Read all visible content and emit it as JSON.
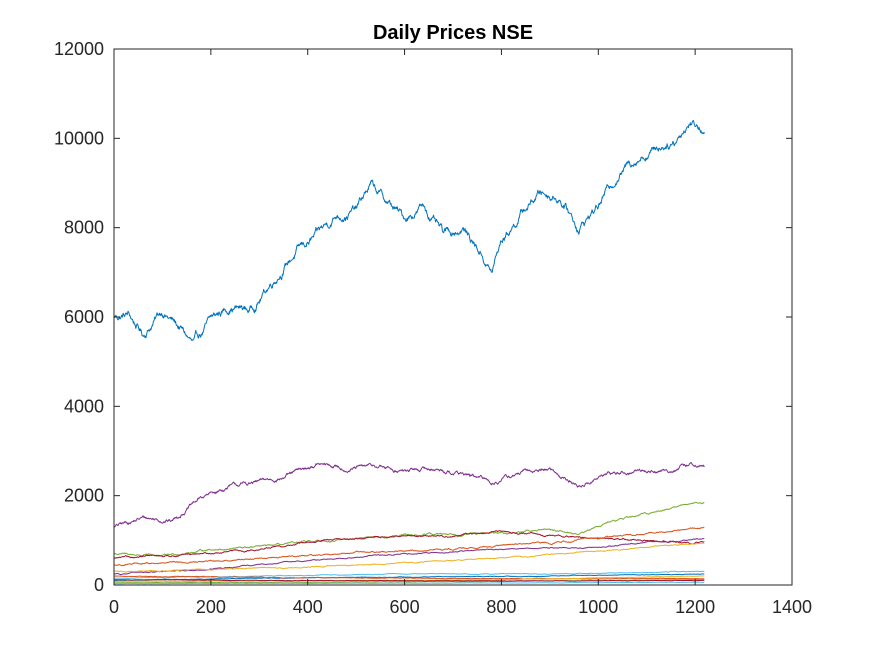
{
  "chart_data": {
    "type": "line",
    "title": "Daily Prices NSE",
    "xlabel": "",
    "ylabel": "",
    "xlim": [
      0,
      1400
    ],
    "ylim": [
      0,
      12000
    ],
    "xticks": [
      0,
      200,
      400,
      600,
      800,
      1000,
      1200,
      1400
    ],
    "yticks": [
      0,
      2000,
      4000,
      6000,
      8000,
      10000,
      12000
    ],
    "grid": false,
    "legend": "none",
    "n_points": 1220,
    "series": [
      {
        "color": "#0072BD",
        "anchors": [
          [
            0,
            6000
          ],
          [
            30,
            6050
          ],
          [
            60,
            5600
          ],
          [
            100,
            6150
          ],
          [
            140,
            5700
          ],
          [
            165,
            5350
          ],
          [
            200,
            5900
          ],
          [
            240,
            6250
          ],
          [
            280,
            6150
          ],
          [
            300,
            6400
          ],
          [
            340,
            7000
          ],
          [
            380,
            7500
          ],
          [
            420,
            7800
          ],
          [
            460,
            8300
          ],
          [
            500,
            8400
          ],
          [
            530,
            8950
          ],
          [
            560,
            8600
          ],
          [
            600,
            8200
          ],
          [
            640,
            8500
          ],
          [
            680,
            7800
          ],
          [
            720,
            8000
          ],
          [
            760,
            7400
          ],
          [
            780,
            7000
          ],
          [
            800,
            7700
          ],
          [
            840,
            8300
          ],
          [
            880,
            8800
          ],
          [
            920,
            8700
          ],
          [
            960,
            8000
          ],
          [
            1000,
            8500
          ],
          [
            1040,
            9200
          ],
          [
            1080,
            9600
          ],
          [
            1120,
            9800
          ],
          [
            1160,
            10000
          ],
          [
            1190,
            10400
          ],
          [
            1220,
            10200
          ]
        ],
        "amp": 120
      },
      {
        "color": "#7E2F8E",
        "anchors": [
          [
            0,
            1300
          ],
          [
            60,
            1500
          ],
          [
            120,
            1450
          ],
          [
            180,
            1950
          ],
          [
            240,
            2200
          ],
          [
            300,
            2300
          ],
          [
            360,
            2450
          ],
          [
            420,
            2700
          ],
          [
            480,
            2600
          ],
          [
            540,
            2650
          ],
          [
            600,
            2550
          ],
          [
            660,
            2600
          ],
          [
            720,
            2500
          ],
          [
            780,
            2300
          ],
          [
            840,
            2500
          ],
          [
            900,
            2600
          ],
          [
            960,
            2200
          ],
          [
            1020,
            2500
          ],
          [
            1080,
            2550
          ],
          [
            1140,
            2550
          ],
          [
            1200,
            2700
          ],
          [
            1220,
            2650
          ]
        ],
        "amp": 55
      },
      {
        "color": "#77AC30",
        "anchors": [
          [
            0,
            700
          ],
          [
            100,
            650
          ],
          [
            200,
            800
          ],
          [
            300,
            850
          ],
          [
            400,
            950
          ],
          [
            500,
            1050
          ],
          [
            600,
            1100
          ],
          [
            700,
            1150
          ],
          [
            800,
            1150
          ],
          [
            900,
            1250
          ],
          [
            960,
            1150
          ],
          [
            1020,
            1400
          ],
          [
            1080,
            1550
          ],
          [
            1140,
            1700
          ],
          [
            1200,
            1850
          ],
          [
            1220,
            1850
          ]
        ],
        "amp": 25
      },
      {
        "color": "#A2142F",
        "anchors": [
          [
            0,
            600
          ],
          [
            100,
            650
          ],
          [
            200,
            700
          ],
          [
            300,
            800
          ],
          [
            400,
            950
          ],
          [
            500,
            1050
          ],
          [
            600,
            1100
          ],
          [
            700,
            1100
          ],
          [
            800,
            1200
          ],
          [
            900,
            1100
          ],
          [
            1000,
            1050
          ],
          [
            1100,
            1000
          ],
          [
            1220,
            950
          ]
        ],
        "amp": 22
      },
      {
        "color": "#D95319",
        "anchors": [
          [
            0,
            450
          ],
          [
            150,
            500
          ],
          [
            300,
            600
          ],
          [
            450,
            700
          ],
          [
            600,
            750
          ],
          [
            750,
            850
          ],
          [
            900,
            950
          ],
          [
            1050,
            1100
          ],
          [
            1150,
            1200
          ],
          [
            1220,
            1300
          ]
        ],
        "amp": 20
      },
      {
        "color": "#7E2F8E",
        "anchors": [
          [
            0,
            250
          ],
          [
            200,
            350
          ],
          [
            400,
            550
          ],
          [
            600,
            700
          ],
          [
            800,
            800
          ],
          [
            1000,
            850
          ],
          [
            1100,
            950
          ],
          [
            1220,
            1050
          ]
        ],
        "amp": 15
      },
      {
        "color": "#EDB120",
        "anchors": [
          [
            0,
            300
          ],
          [
            200,
            350
          ],
          [
            400,
            400
          ],
          [
            600,
            500
          ],
          [
            800,
            600
          ],
          [
            1000,
            750
          ],
          [
            1220,
            950
          ]
        ],
        "amp": 14
      },
      {
        "color": "#4DBEEE",
        "anchors": [
          [
            0,
            150
          ],
          [
            300,
            200
          ],
          [
            600,
            250
          ],
          [
            900,
            250
          ],
          [
            1220,
            300
          ]
        ],
        "amp": 8
      },
      {
        "color": "#0072BD",
        "anchors": [
          [
            0,
            100
          ],
          [
            300,
            150
          ],
          [
            600,
            180
          ],
          [
            900,
            200
          ],
          [
            1220,
            250
          ]
        ],
        "amp": 7
      },
      {
        "color": "#D95319",
        "anchors": [
          [
            0,
            200
          ],
          [
            300,
            170
          ],
          [
            600,
            150
          ],
          [
            900,
            140
          ],
          [
            1220,
            150
          ]
        ],
        "amp": 7
      },
      {
        "color": "#EDB120",
        "anchors": [
          [
            0,
            80
          ],
          [
            400,
            90
          ],
          [
            800,
            120
          ],
          [
            1220,
            200
          ]
        ],
        "amp": 5
      },
      {
        "color": "#77AC30",
        "anchors": [
          [
            0,
            50
          ],
          [
            400,
            60
          ],
          [
            800,
            80
          ],
          [
            1220,
            120
          ]
        ],
        "amp": 4
      },
      {
        "color": "#A2142F",
        "anchors": [
          [
            0,
            120
          ],
          [
            400,
            100
          ],
          [
            800,
            90
          ],
          [
            1220,
            100
          ]
        ],
        "amp": 5
      },
      {
        "color": "#4DBEEE",
        "anchors": [
          [
            0,
            30
          ],
          [
            600,
            40
          ],
          [
            1220,
            60
          ]
        ],
        "amp": 3
      }
    ]
  }
}
